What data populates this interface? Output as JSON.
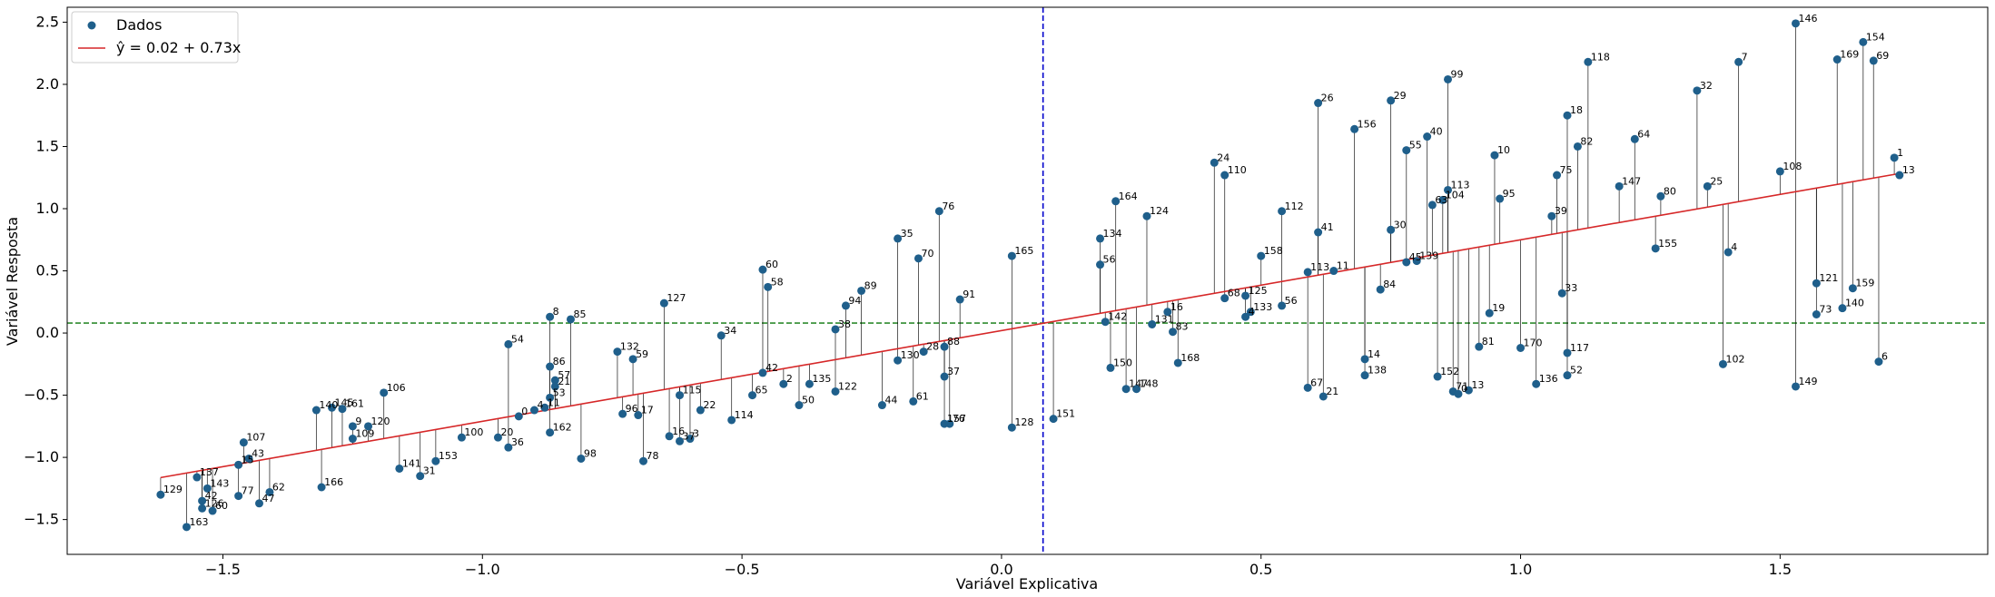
{
  "chart_data": {
    "type": "scatter",
    "xlabel": "Variável Explicativa",
    "ylabel": "Variável Resposta",
    "xlim": [
      -1.8,
      1.9
    ],
    "ylim": [
      -1.78,
      2.62
    ],
    "xticks": [
      -1.5,
      -1.0,
      -0.5,
      0.0,
      0.5,
      1.0,
      1.5
    ],
    "xtick_labels": [
      "−1.5",
      "−1.0",
      "−0.5",
      "0.0",
      "0.5",
      "1.0",
      "1.5"
    ],
    "yticks": [
      -1.5,
      -1.0,
      -0.5,
      0.0,
      0.5,
      1.0,
      1.5,
      2.0,
      2.5
    ],
    "ytick_labels": [
      "−1.5",
      "−1.0",
      "−0.5",
      "0.0",
      "0.5",
      "1.0",
      "1.5",
      "2.0",
      "2.5"
    ],
    "grid": false,
    "legend_position": "upper-left",
    "colors": {
      "points": "#1f5f8b",
      "fit_line": "#d62728",
      "mean_x_line": "#0000cc",
      "mean_y_line": "#2e8b2e",
      "residual": "#000000"
    },
    "regression": {
      "intercept": 0.02,
      "slope": 0.73,
      "label": "ŷ = 0.02 + 0.73x"
    },
    "mean_x": 0.08,
    "mean_y": 0.08,
    "series": [
      {
        "name": "Dados",
        "points": [
          {
            "id": "129",
            "x": -1.62,
            "y": -1.3
          },
          {
            "id": "163",
            "x": -1.57,
            "y": -1.56
          },
          {
            "id": "137",
            "x": -1.55,
            "y": -1.16
          },
          {
            "id": "143",
            "x": -1.53,
            "y": -1.25
          },
          {
            "id": "42",
            "x": -1.54,
            "y": -1.35
          },
          {
            "id": "126",
            "x": -1.54,
            "y": -1.41
          },
          {
            "id": "60",
            "x": -1.52,
            "y": -1.43
          },
          {
            "id": "107",
            "x": -1.46,
            "y": -0.88
          },
          {
            "id": "15",
            "x": -1.47,
            "y": -1.06
          },
          {
            "id": "43",
            "x": -1.45,
            "y": -1.01
          },
          {
            "id": "77",
            "x": -1.47,
            "y": -1.31
          },
          {
            "id": "62",
            "x": -1.41,
            "y": -1.28
          },
          {
            "id": "47",
            "x": -1.43,
            "y": -1.37
          },
          {
            "id": "166",
            "x": -1.31,
            "y": -1.24
          },
          {
            "id": "140",
            "x": -1.32,
            "y": -0.62
          },
          {
            "id": "145",
            "x": -1.29,
            "y": -0.6
          },
          {
            "id": "161",
            "x": -1.27,
            "y": -0.61
          },
          {
            "id": "9",
            "x": -1.25,
            "y": -0.75
          },
          {
            "id": "120",
            "x": -1.22,
            "y": -0.75
          },
          {
            "id": "109",
            "x": -1.25,
            "y": -0.85
          },
          {
            "id": "106",
            "x": -1.19,
            "y": -0.48
          },
          {
            "id": "141",
            "x": -1.16,
            "y": -1.09
          },
          {
            "id": "31",
            "x": -1.12,
            "y": -1.15
          },
          {
            "id": "153",
            "x": -1.09,
            "y": -1.03
          },
          {
            "id": "100",
            "x": -1.04,
            "y": -0.84
          },
          {
            "id": "20",
            "x": -0.97,
            "y": -0.84
          },
          {
            "id": "36",
            "x": -0.95,
            "y": -0.92
          },
          {
            "id": "54",
            "x": -0.95,
            "y": -0.09
          },
          {
            "id": "0",
            "x": -0.93,
            "y": -0.67
          },
          {
            "id": "4",
            "x": -0.9,
            "y": -0.62
          },
          {
            "id": "11",
            "x": -0.88,
            "y": -0.6
          },
          {
            "id": "8",
            "x": -0.87,
            "y": 0.13
          },
          {
            "id": "86",
            "x": -0.87,
            "y": -0.27
          },
          {
            "id": "57",
            "x": -0.86,
            "y": -0.38
          },
          {
            "id": "21",
            "x": -0.86,
            "y": -0.43
          },
          {
            "id": "53",
            "x": -0.87,
            "y": -0.52
          },
          {
            "id": "162",
            "x": -0.87,
            "y": -0.8
          },
          {
            "id": "85",
            "x": -0.83,
            "y": 0.11
          },
          {
            "id": "98",
            "x": -0.81,
            "y": -1.01
          },
          {
            "id": "132",
            "x": -0.74,
            "y": -0.15
          },
          {
            "id": "59",
            "x": -0.71,
            "y": -0.21
          },
          {
            "id": "96",
            "x": -0.73,
            "y": -0.65
          },
          {
            "id": "17",
            "x": -0.7,
            "y": -0.66
          },
          {
            "id": "78",
            "x": -0.69,
            "y": -1.03
          },
          {
            "id": "127",
            "x": -0.65,
            "y": 0.24
          },
          {
            "id": "16",
            "x": -0.64,
            "y": -0.83
          },
          {
            "id": "37",
            "x": -0.62,
            "y": -0.87
          },
          {
            "id": "3",
            "x": -0.6,
            "y": -0.85
          },
          {
            "id": "115",
            "x": -0.62,
            "y": -0.5
          },
          {
            "id": "22",
            "x": -0.58,
            "y": -0.62
          },
          {
            "id": "34",
            "x": -0.54,
            "y": -0.02
          },
          {
            "id": "114",
            "x": -0.52,
            "y": -0.7
          },
          {
            "id": "65",
            "x": -0.48,
            "y": -0.5
          },
          {
            "id": "42",
            "x": -0.46,
            "y": -0.32
          },
          {
            "id": "60",
            "x": -0.46,
            "y": 0.51
          },
          {
            "id": "58",
            "x": -0.45,
            "y": 0.37
          },
          {
            "id": "2",
            "x": -0.42,
            "y": -0.41
          },
          {
            "id": "50",
            "x": -0.39,
            "y": -0.58
          },
          {
            "id": "135",
            "x": -0.37,
            "y": -0.41
          },
          {
            "id": "38",
            "x": -0.32,
            "y": 0.03
          },
          {
            "id": "122",
            "x": -0.32,
            "y": -0.47
          },
          {
            "id": "94",
            "x": -0.3,
            "y": 0.22
          },
          {
            "id": "89",
            "x": -0.27,
            "y": 0.34
          },
          {
            "id": "44",
            "x": -0.23,
            "y": -0.58
          },
          {
            "id": "35",
            "x": -0.2,
            "y": 0.76
          },
          {
            "id": "130",
            "x": -0.2,
            "y": -0.22
          },
          {
            "id": "70",
            "x": -0.16,
            "y": 0.6
          },
          {
            "id": "61",
            "x": -0.17,
            "y": -0.55
          },
          {
            "id": "28",
            "x": -0.15,
            "y": -0.15
          },
          {
            "id": "76",
            "x": -0.12,
            "y": 0.98
          },
          {
            "id": "88",
            "x": -0.11,
            "y": -0.11
          },
          {
            "id": "37",
            "x": -0.11,
            "y": -0.35
          },
          {
            "id": "157",
            "x": -0.11,
            "y": -0.73
          },
          {
            "id": "76",
            "x": -0.1,
            "y": -0.73
          },
          {
            "id": "91",
            "x": -0.08,
            "y": 0.27
          },
          {
            "id": "165",
            "x": 0.02,
            "y": 0.62
          },
          {
            "id": "128",
            "x": 0.02,
            "y": -0.76
          },
          {
            "id": "151",
            "x": 0.1,
            "y": -0.69
          },
          {
            "id": "134",
            "x": 0.19,
            "y": 0.76
          },
          {
            "id": "56",
            "x": 0.19,
            "y": 0.55
          },
          {
            "id": "142",
            "x": 0.2,
            "y": 0.09
          },
          {
            "id": "150",
            "x": 0.21,
            "y": -0.28
          },
          {
            "id": "164",
            "x": 0.22,
            "y": 1.06
          },
          {
            "id": "147",
            "x": 0.24,
            "y": -0.45
          },
          {
            "id": "148",
            "x": 0.26,
            "y": -0.45
          },
          {
            "id": "124",
            "x": 0.28,
            "y": 0.94
          },
          {
            "id": "131",
            "x": 0.29,
            "y": 0.07
          },
          {
            "id": "16",
            "x": 0.32,
            "y": 0.17
          },
          {
            "id": "83",
            "x": 0.33,
            "y": 0.01
          },
          {
            "id": "168",
            "x": 0.34,
            "y": -0.24
          },
          {
            "id": "24",
            "x": 0.41,
            "y": 1.37
          },
          {
            "id": "110",
            "x": 0.43,
            "y": 1.27
          },
          {
            "id": "68",
            "x": 0.43,
            "y": 0.28
          },
          {
            "id": "125",
            "x": 0.47,
            "y": 0.3
          },
          {
            "id": "133",
            "x": 0.48,
            "y": 0.17
          },
          {
            "id": "4",
            "x": 0.47,
            "y": 0.13
          },
          {
            "id": "158",
            "x": 0.5,
            "y": 0.62
          },
          {
            "id": "112",
            "x": 0.54,
            "y": 0.98
          },
          {
            "id": "56",
            "x": 0.54,
            "y": 0.22
          },
          {
            "id": "113",
            "x": 0.59,
            "y": 0.49
          },
          {
            "id": "67",
            "x": 0.59,
            "y": -0.44
          },
          {
            "id": "26",
            "x": 0.61,
            "y": 1.85
          },
          {
            "id": "41",
            "x": 0.61,
            "y": 0.81
          },
          {
            "id": "21",
            "x": 0.62,
            "y": -0.51
          },
          {
            "id": "11",
            "x": 0.64,
            "y": 0.5
          },
          {
            "id": "156",
            "x": 0.68,
            "y": 1.64
          },
          {
            "id": "84",
            "x": 0.73,
            "y": 0.35
          },
          {
            "id": "14",
            "x": 0.7,
            "y": -0.21
          },
          {
            "id": "138",
            "x": 0.7,
            "y": -0.34
          },
          {
            "id": "29",
            "x": 0.75,
            "y": 1.87
          },
          {
            "id": "30",
            "x": 0.75,
            "y": 0.83
          },
          {
            "id": "55",
            "x": 0.78,
            "y": 1.47
          },
          {
            "id": "45",
            "x": 0.78,
            "y": 0.57
          },
          {
            "id": "139",
            "x": 0.8,
            "y": 0.58
          },
          {
            "id": "40",
            "x": 0.82,
            "y": 1.58
          },
          {
            "id": "63",
            "x": 0.83,
            "y": 1.03
          },
          {
            "id": "104",
            "x": 0.85,
            "y": 1.07
          },
          {
            "id": "113",
            "x": 0.86,
            "y": 1.15
          },
          {
            "id": "99",
            "x": 0.86,
            "y": 2.04
          },
          {
            "id": "152",
            "x": 0.84,
            "y": -0.35
          },
          {
            "id": "71",
            "x": 0.87,
            "y": -0.47
          },
          {
            "id": "13",
            "x": 0.9,
            "y": -0.46
          },
          {
            "id": "0",
            "x": 0.88,
            "y": -0.49
          },
          {
            "id": "81",
            "x": 0.92,
            "y": -0.11
          },
          {
            "id": "19",
            "x": 0.94,
            "y": 0.16
          },
          {
            "id": "10",
            "x": 0.95,
            "y": 1.43
          },
          {
            "id": "95",
            "x": 0.96,
            "y": 1.08
          },
          {
            "id": "170",
            "x": 1.0,
            "y": -0.12
          },
          {
            "id": "136",
            "x": 1.03,
            "y": -0.41
          },
          {
            "id": "39",
            "x": 1.06,
            "y": 0.94
          },
          {
            "id": "75",
            "x": 1.07,
            "y": 1.27
          },
          {
            "id": "33",
            "x": 1.08,
            "y": 0.32
          },
          {
            "id": "18",
            "x": 1.09,
            "y": 1.75
          },
          {
            "id": "117",
            "x": 1.09,
            "y": -0.16
          },
          {
            "id": "52",
            "x": 1.09,
            "y": -0.34
          },
          {
            "id": "82",
            "x": 1.11,
            "y": 1.5
          },
          {
            "id": "118",
            "x": 1.13,
            "y": 2.18
          },
          {
            "id": "147",
            "x": 1.19,
            "y": 1.18
          },
          {
            "id": "64",
            "x": 1.22,
            "y": 1.56
          },
          {
            "id": "155",
            "x": 1.26,
            "y": 0.68
          },
          {
            "id": "80",
            "x": 1.27,
            "y": 1.1
          },
          {
            "id": "32",
            "x": 1.34,
            "y": 1.95
          },
          {
            "id": "25",
            "x": 1.36,
            "y": 1.18
          },
          {
            "id": "102",
            "x": 1.39,
            "y": -0.25
          },
          {
            "id": "4",
            "x": 1.4,
            "y": 0.65
          },
          {
            "id": "7",
            "x": 1.42,
            "y": 2.18
          },
          {
            "id": "108",
            "x": 1.5,
            "y": 1.3
          },
          {
            "id": "146",
            "x": 1.53,
            "y": 2.49
          },
          {
            "id": "149",
            "x": 1.53,
            "y": -0.43
          },
          {
            "id": "73",
            "x": 1.57,
            "y": 0.15
          },
          {
            "id": "121",
            "x": 1.57,
            "y": 0.4
          },
          {
            "id": "169",
            "x": 1.61,
            "y": 2.2
          },
          {
            "id": "140",
            "x": 1.62,
            "y": 0.2
          },
          {
            "id": "159",
            "x": 1.64,
            "y": 0.36
          },
          {
            "id": "154",
            "x": 1.66,
            "y": 2.34
          },
          {
            "id": "69",
            "x": 1.68,
            "y": 2.19
          },
          {
            "id": "6",
            "x": 1.69,
            "y": -0.23
          },
          {
            "id": "1",
            "x": 1.72,
            "y": 1.41
          },
          {
            "id": "13",
            "x": 1.73,
            "y": 1.27
          }
        ]
      }
    ],
    "legend": [
      {
        "label": "Dados",
        "kind": "marker"
      },
      {
        "label": "ŷ = 0.02 + 0.73x",
        "kind": "line"
      }
    ]
  }
}
